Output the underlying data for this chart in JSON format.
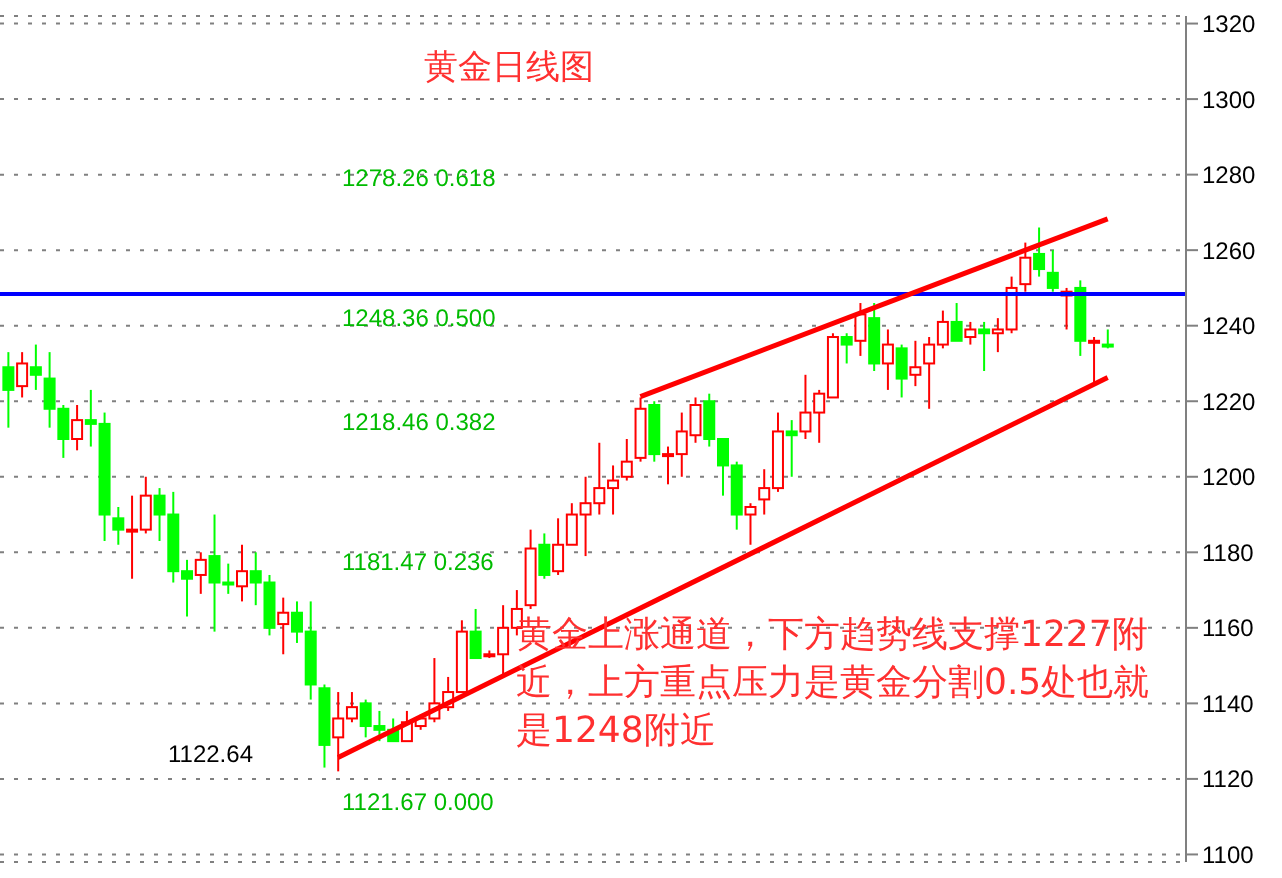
{
  "chart_data": {
    "type": "candlestick",
    "title": "黄金日线图",
    "categories": [
      null,
      null,
      null,
      null,
      null,
      null,
      null,
      null,
      null,
      null,
      null,
      null,
      null,
      null,
      null,
      null,
      null,
      null,
      null,
      null,
      null,
      null,
      null,
      null,
      null,
      null,
      null,
      null,
      null,
      null,
      null,
      null,
      null,
      null,
      null,
      null,
      null,
      null,
      null,
      null,
      null,
      null,
      null,
      null,
      null,
      null,
      null,
      null,
      null,
      null,
      null,
      null,
      null,
      null,
      null,
      null,
      null,
      null,
      null,
      null,
      null,
      null,
      null,
      null,
      null,
      null,
      null,
      null,
      null,
      null,
      null,
      null,
      null,
      null,
      null,
      null,
      null,
      null,
      null,
      null,
      null
    ],
    "ohlc": [
      [
        1229,
        1233,
        1213,
        1223
      ],
      [
        1224,
        1233,
        1221,
        1230
      ],
      [
        1229,
        1235,
        1223,
        1227
      ],
      [
        1226,
        1233,
        1213,
        1218
      ],
      [
        1218,
        1219,
        1205,
        1210
      ],
      [
        1210,
        1219,
        1207,
        1215
      ],
      [
        1215,
        1223,
        1208,
        1214
      ],
      [
        1214,
        1217,
        1183,
        1190
      ],
      [
        1189,
        1192,
        1182,
        1186
      ],
      [
        1186,
        1195,
        1173,
        1186
      ],
      [
        1186,
        1200,
        1185,
        1195
      ],
      [
        1195,
        1197,
        1183,
        1190
      ],
      [
        1190,
        1196,
        1172,
        1175
      ],
      [
        1175,
        1178,
        1163,
        1173
      ],
      [
        1174,
        1180,
        1169,
        1178
      ],
      [
        1179,
        1190,
        1159,
        1172
      ],
      [
        1172,
        1177,
        1169,
        1172
      ],
      [
        1171,
        1182,
        1167,
        1175
      ],
      [
        1175,
        1180,
        1166,
        1172
      ],
      [
        1172,
        1174,
        1158,
        1160
      ],
      [
        1161,
        1168,
        1153,
        1164
      ],
      [
        1164,
        1167,
        1156,
        1159
      ],
      [
        1159,
        1167,
        1141,
        1145
      ],
      [
        1144,
        1145,
        1123,
        1129
      ],
      [
        1131,
        1143,
        1122,
        1136
      ],
      [
        1136,
        1143,
        1135,
        1139
      ],
      [
        1140,
        1141,
        1131,
        1134
      ],
      [
        1134,
        1138,
        1130,
        1133
      ],
      [
        1133,
        1136,
        1130,
        1130
      ],
      [
        1130,
        1138,
        1130,
        1135
      ],
      [
        1134,
        1137,
        1133,
        1136
      ],
      [
        1136,
        1152,
        1135,
        1140
      ],
      [
        1139,
        1147,
        1138,
        1143
      ],
      [
        1143,
        1162,
        1143,
        1159
      ],
      [
        1159,
        1165,
        1152,
        1152
      ],
      [
        1153,
        1154,
        1152,
        1153
      ],
      [
        1153,
        1166,
        1147,
        1160
      ],
      [
        1160,
        1170,
        1158,
        1165
      ],
      [
        1166,
        1186,
        1165,
        1181
      ],
      [
        1182,
        1185,
        1173,
        1174
      ],
      [
        1175,
        1189,
        1174,
        1182
      ],
      [
        1182,
        1193,
        1182,
        1190
      ],
      [
        1190,
        1200,
        1179,
        1193
      ],
      [
        1193,
        1209,
        1190,
        1197
      ],
      [
        1197,
        1203,
        1190,
        1199
      ],
      [
        1200,
        1210,
        1199,
        1204
      ],
      [
        1205,
        1221,
        1204,
        1218
      ],
      [
        1219,
        1220,
        1204,
        1206
      ],
      [
        1206,
        1208,
        1198,
        1206
      ],
      [
        1206,
        1217,
        1200,
        1212
      ],
      [
        1211,
        1221,
        1209,
        1219
      ],
      [
        1220,
        1222,
        1208,
        1210
      ],
      [
        1210,
        1210,
        1195,
        1203
      ],
      [
        1203,
        1204,
        1186,
        1190
      ],
      [
        1190,
        1193,
        1182,
        1192
      ],
      [
        1194,
        1202,
        1190,
        1197
      ],
      [
        1197,
        1217,
        1196,
        1212
      ],
      [
        1212,
        1215,
        1200,
        1211
      ],
      [
        1212,
        1227,
        1210,
        1217
      ],
      [
        1217,
        1223,
        1209,
        1222
      ],
      [
        1221,
        1238,
        1221,
        1237
      ],
      [
        1237,
        1238,
        1230,
        1235
      ],
      [
        1236,
        1246,
        1232,
        1243
      ],
      [
        1242,
        1246,
        1228,
        1230
      ],
      [
        1230,
        1239,
        1223,
        1235
      ],
      [
        1234,
        1235,
        1221,
        1226
      ],
      [
        1227,
        1236,
        1224,
        1229
      ],
      [
        1230,
        1237,
        1218,
        1235
      ],
      [
        1235,
        1244,
        1234,
        1241
      ],
      [
        1241,
        1246,
        1236,
        1236
      ],
      [
        1237,
        1241,
        1235,
        1239
      ],
      [
        1239,
        1241,
        1228,
        1238
      ],
      [
        1238,
        1242,
        1233,
        1239
      ],
      [
        1239,
        1253,
        1238,
        1250
      ],
      [
        1251,
        1262,
        1249,
        1258
      ],
      [
        1259,
        1266,
        1253,
        1255
      ],
      [
        1254,
        1260,
        1249,
        1250
      ],
      [
        1248,
        1250,
        1239,
        1249
      ],
      [
        1250,
        1252,
        1232,
        1236
      ],
      [
        1236,
        1237,
        1225,
        1236
      ],
      [
        1235,
        1239,
        1234,
        1235
      ]
    ],
    "colors": [
      "#00ff00",
      "#ff0000",
      "#00ff00",
      "#00ff00",
      "#00ff00",
      "#ff0000",
      "#00ff00",
      "#00ff00",
      "#00ff00",
      "#ff0000",
      "#ff0000",
      "#00ff00",
      "#00ff00",
      "#00ff00",
      "#ff0000",
      "#00ff00",
      "#00ff00",
      "#ff0000",
      "#00ff00",
      "#00ff00",
      "#ff0000",
      "#00ff00",
      "#00ff00",
      "#00ff00",
      "#ff0000",
      "#ff0000",
      "#00ff00",
      "#00ff00",
      "#00ff00",
      "#ff0000",
      "#ff0000",
      "#ff0000",
      "#ff0000",
      "#ff0000",
      "#00ff00",
      "#ff0000",
      "#ff0000",
      "#ff0000",
      "#ff0000",
      "#00ff00",
      "#ff0000",
      "#ff0000",
      "#ff0000",
      "#ff0000",
      "#ff0000",
      "#ff0000",
      "#ff0000",
      "#00ff00",
      "#ff0000",
      "#ff0000",
      "#ff0000",
      "#00ff00",
      "#00ff00",
      "#00ff00",
      "#ff0000",
      "#ff0000",
      "#ff0000",
      "#00ff00",
      "#ff0000",
      "#ff0000",
      "#ff0000",
      "#00ff00",
      "#ff0000",
      "#00ff00",
      "#ff0000",
      "#00ff00",
      "#ff0000",
      "#ff0000",
      "#ff0000",
      "#00ff00",
      "#ff0000",
      "#00ff00",
      "#ff0000",
      "#ff0000",
      "#ff0000",
      "#00ff00",
      "#00ff00",
      "#ff0000",
      "#00ff00",
      "#ff0000",
      "#00ff00"
    ],
    "series": [
      {
        "type": "line",
        "color": "#ff0000",
        "values": [
          null,
          null,
          null,
          null,
          null,
          null,
          null,
          null,
          null,
          null,
          null,
          null,
          null,
          null,
          null,
          null,
          null,
          null,
          null,
          null,
          null,
          null,
          null,
          null,
          1125.7,
          null,
          null,
          null,
          null,
          null,
          null,
          null,
          null,
          null,
          null,
          null,
          null,
          null,
          null,
          null,
          null,
          null,
          null,
          null,
          null,
          null,
          null,
          null,
          null,
          null,
          null,
          null,
          null,
          null,
          null,
          null,
          null,
          null,
          null,
          null,
          null,
          null,
          null,
          null,
          null,
          null,
          null,
          null,
          null,
          null,
          null,
          null,
          null,
          null,
          null,
          null,
          null,
          null,
          null,
          null,
          1226.3
        ]
      },
      {
        "type": "line",
        "color": "#ff0000",
        "values": [
          null,
          null,
          null,
          null,
          null,
          null,
          null,
          null,
          null,
          null,
          null,
          null,
          null,
          null,
          null,
          null,
          null,
          null,
          null,
          null,
          null,
          null,
          null,
          null,
          null,
          null,
          null,
          null,
          null,
          null,
          null,
          null,
          null,
          null,
          null,
          null,
          null,
          null,
          null,
          null,
          null,
          null,
          null,
          null,
          null,
          null,
          1221.2,
          null,
          null,
          null,
          null,
          null,
          null,
          null,
          null,
          null,
          null,
          null,
          null,
          null,
          null,
          null,
          null,
          null,
          null,
          null,
          null,
          null,
          null,
          null,
          null,
          null,
          null,
          null,
          null,
          null,
          null,
          null,
          null,
          null,
          1268.3
        ]
      }
    ],
    "ylim": [
      1098,
      1322
    ],
    "yticks": [
      1100,
      1120,
      1140,
      1160,
      1180,
      1200,
      1220,
      1240,
      1260,
      1280,
      1300,
      1320
    ],
    "grid": "y",
    "legend": false,
    "ref_lines": [
      {
        "axis": "y",
        "value": 1248.36,
        "label": "1248.36 0.500",
        "color": "#0000ff"
      }
    ],
    "annotations": [
      "1278.26 0.618",
      "1218.46 0.382",
      "1181.47 0.236",
      "1121.67 0.000",
      "1122.64",
      "黄金上涨通道，下方趋势线支撑1227附近，上方重点压力是黄金分割0.5处也就是1248附近"
    ]
  }
}
